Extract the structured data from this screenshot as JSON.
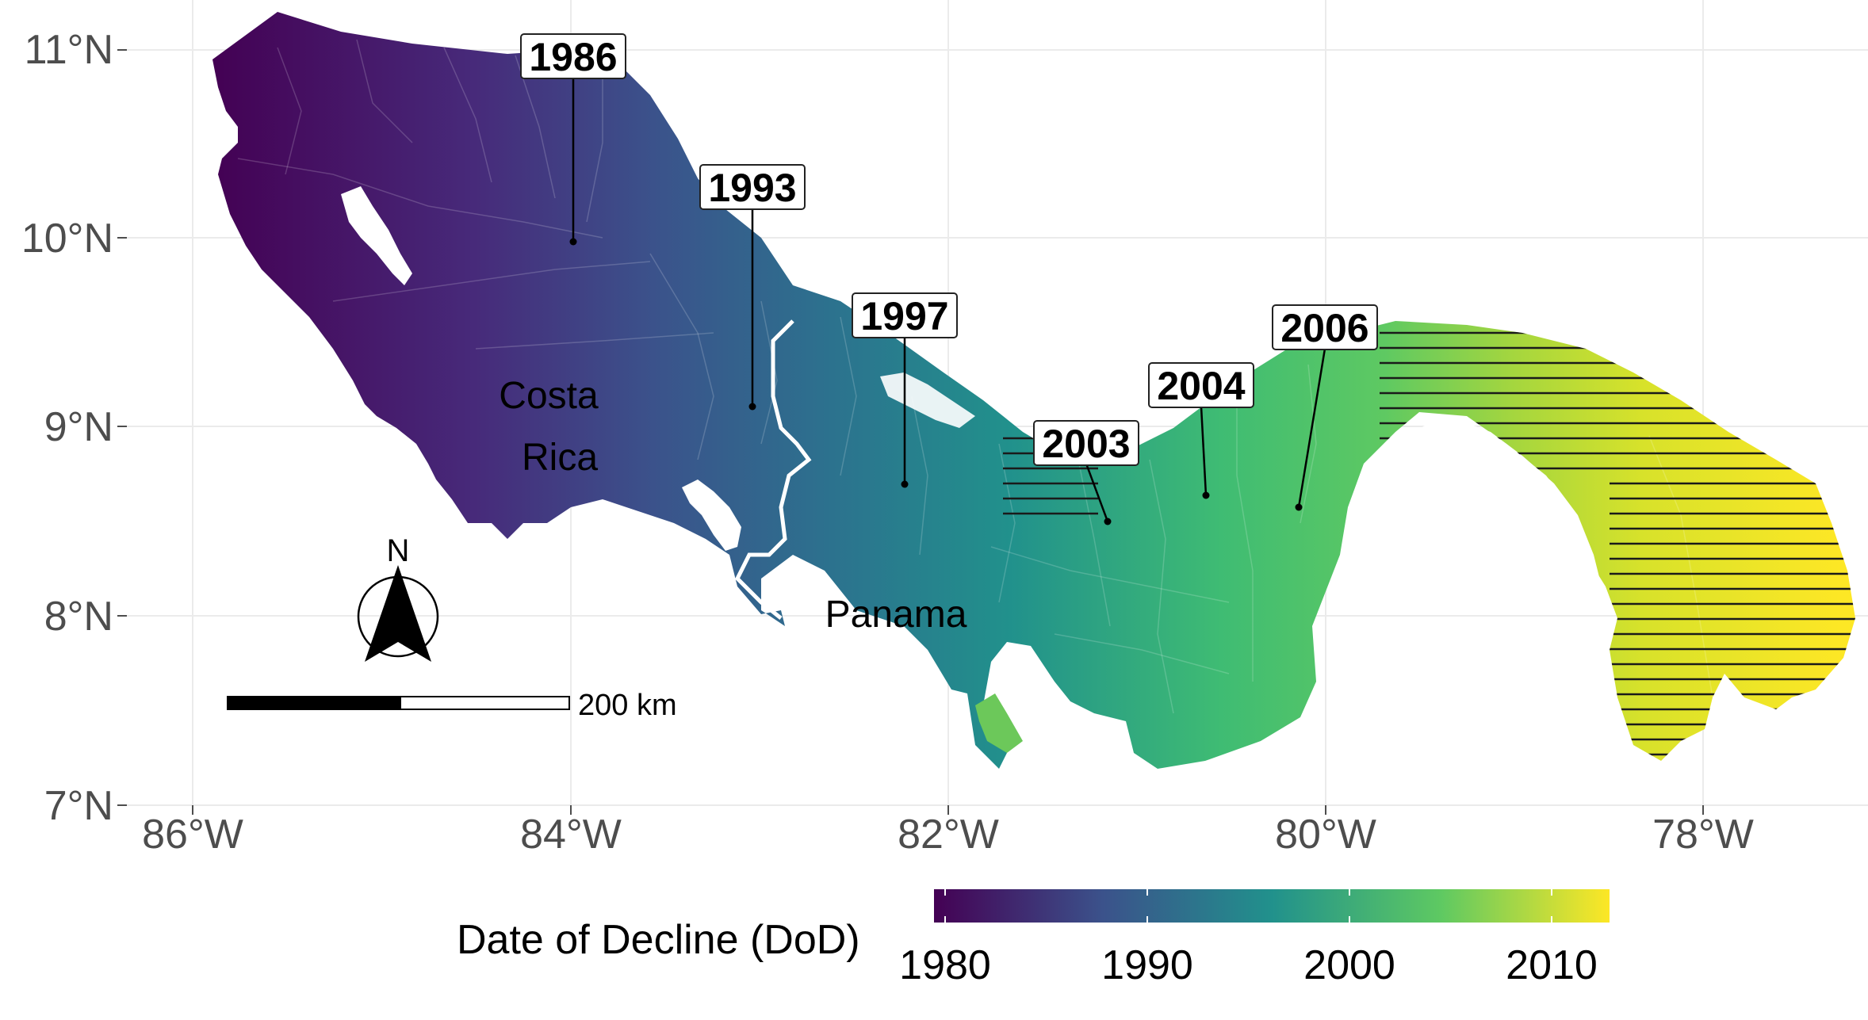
{
  "map": {
    "lon_labels": [
      "86°W",
      "84°W",
      "82°W",
      "80°W",
      "78°W"
    ],
    "lat_labels": [
      "11°N",
      "10°N",
      "9°N",
      "8°N",
      "7°N"
    ],
    "country_labels": {
      "costa_rica_line1": "Costa",
      "costa_rica_line2": "Rica",
      "panama": "Panama"
    },
    "annotations": [
      {
        "year": "1986",
        "lon": -84.0,
        "lat": 9.97
      },
      {
        "year": "1993",
        "lon": -83.0,
        "lat": 9.1
      },
      {
        "year": "1997",
        "lon": -82.2,
        "lat": 8.7
      },
      {
        "year": "2003",
        "lon": -81.2,
        "lat": 8.5
      },
      {
        "year": "2004",
        "lon": -80.7,
        "lat": 8.64
      },
      {
        "year": "2006",
        "lon": -80.15,
        "lat": 8.58
      }
    ],
    "north_arrow_label": "N",
    "scale_bar_label": "200 km",
    "hatched_regions": "eastern Panama",
    "legend": {
      "title": "Date of Decline (DoD)",
      "tick_labels": [
        "1980",
        "1990",
        "2000",
        "2010"
      ],
      "colors": [
        "#440154",
        "#3b528b",
        "#21918c",
        "#5ec962",
        "#fde725"
      ]
    }
  }
}
